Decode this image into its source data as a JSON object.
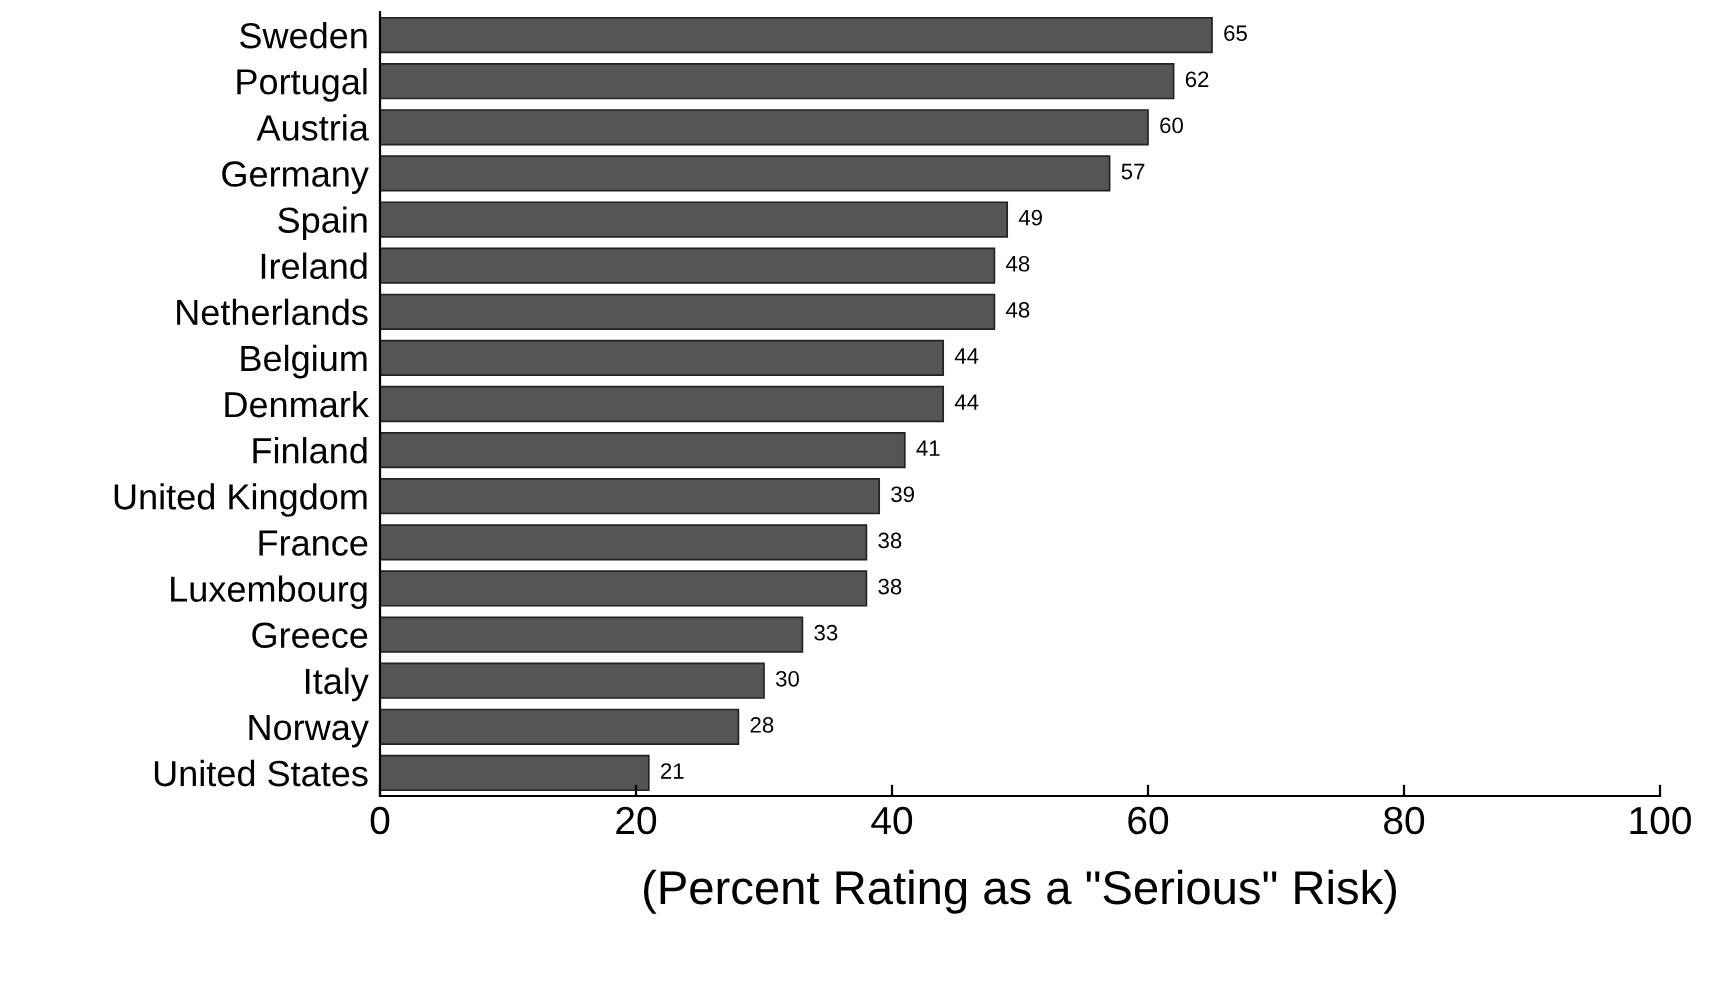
{
  "chart_data": {
    "type": "bar",
    "orientation": "horizontal",
    "xlabel": "(Percent Rating as a \"Serious\" Risk)",
    "categories": [
      "Sweden",
      "Portugal",
      "Austria",
      "Germany",
      "Spain",
      "Ireland",
      "Netherlands",
      "Belgium",
      "Denmark",
      "Finland",
      "United Kingdom",
      "France",
      "Luxembourg",
      "Greece",
      "Italy",
      "Norway",
      "United States"
    ],
    "values": [
      65,
      62,
      60,
      57,
      49,
      48,
      48,
      44,
      44,
      41,
      39,
      38,
      38,
      33,
      30,
      28,
      21
    ],
    "color": "#555555",
    "data_labels": true,
    "xlim": [
      0,
      100
    ],
    "xticks": [
      0,
      20,
      40,
      60,
      80,
      100
    ],
    "grid": false,
    "legend": false
  }
}
